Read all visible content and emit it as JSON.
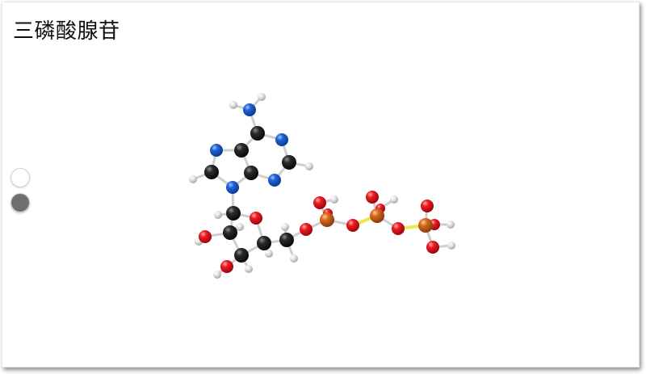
{
  "page": {
    "title": "三磷酸腺苷"
  },
  "view_controls": [
    {
      "name": "view-option-1",
      "state": "inactive",
      "color": "#ffffff"
    },
    {
      "name": "view-option-2",
      "state": "active",
      "color": "#6f6f6f"
    }
  ],
  "molecule_colors": {
    "carbon": "#1a1a1a",
    "nitrogen": "#1a5fd0",
    "oxygen": "#e8141c",
    "phosphorus": "#d2691e",
    "hydrogen": "#d9d9d9",
    "bond": "#cfcfcf",
    "phosphate_bond": "#f0e84a"
  }
}
